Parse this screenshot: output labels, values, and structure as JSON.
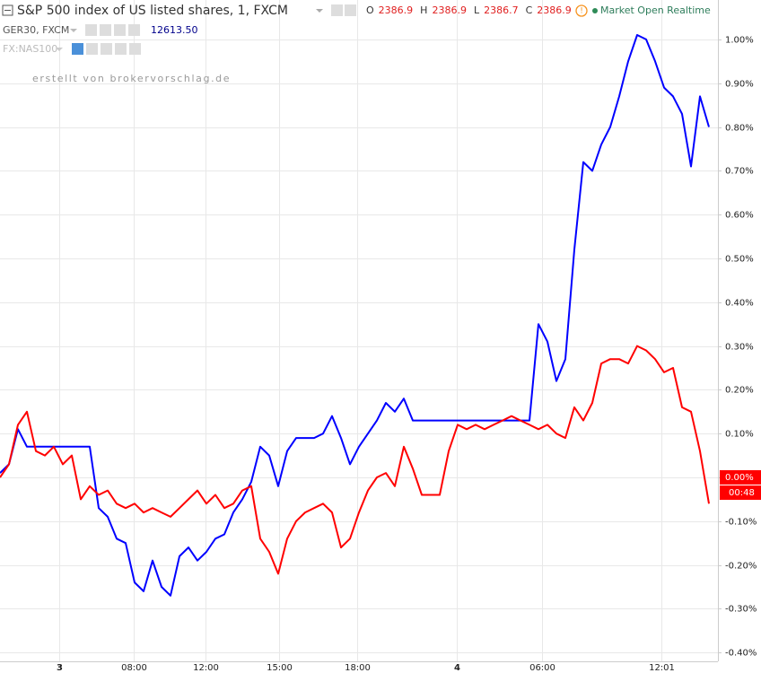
{
  "chart_data": {
    "type": "line",
    "title": "S&P 500 index of US listed shares, 1, FXCM",
    "ohlc": [
      {
        "label": "O",
        "value": 2386.9
      },
      {
        "label": "H",
        "value": 2386.9
      },
      {
        "label": "L",
        "value": 2386.7
      },
      {
        "label": "C",
        "value": 2386.9
      }
    ],
    "status": "Market Open Realtime",
    "hidden_comparison": "FX:NAS100",
    "watermark": "erstellt von brokervorschlag.de",
    "countdown": "00:48",
    "x": [
      0,
      1,
      2,
      3,
      4,
      5,
      6,
      7,
      8,
      9,
      10,
      11,
      12,
      13,
      14,
      15,
      16,
      17,
      18,
      19,
      20,
      21,
      22,
      23,
      24,
      25,
      26,
      27,
      28,
      29,
      30,
      31,
      32,
      33,
      34,
      35,
      36,
      37,
      38,
      39,
      40,
      41,
      42,
      43,
      44,
      45,
      46,
      47,
      48,
      49,
      50,
      51,
      52,
      53,
      54,
      55,
      56,
      57,
      58,
      59,
      60,
      61,
      62,
      63,
      64,
      65,
      66,
      67,
      68,
      69,
      70,
      71,
      72,
      73,
      74,
      75,
      76,
      77,
      78,
      79
    ],
    "series": [
      {
        "name": "GER30, FXCM",
        "legend_value": "12613.50",
        "color": "#0000ff",
        "values": [
          0.01,
          0.03,
          0.11,
          0.07,
          0.07,
          0.07,
          0.07,
          0.07,
          0.07,
          0.07,
          0.07,
          -0.07,
          -0.09,
          -0.14,
          -0.15,
          -0.24,
          -0.26,
          -0.19,
          -0.25,
          -0.27,
          -0.18,
          -0.16,
          -0.19,
          -0.17,
          -0.14,
          -0.13,
          -0.08,
          -0.05,
          -0.01,
          0.07,
          0.05,
          -0.02,
          0.06,
          0.09,
          0.09,
          0.09,
          0.1,
          0.14,
          0.09,
          0.03,
          0.07,
          0.1,
          0.13,
          0.17,
          0.15,
          0.18,
          0.13,
          0.13,
          0.13,
          0.13,
          0.13,
          0.13,
          0.13,
          0.13,
          0.13,
          0.13,
          0.13,
          0.13,
          0.13,
          0.13,
          0.35,
          0.31,
          0.22,
          0.27,
          0.52,
          0.72,
          0.7,
          0.76,
          0.8,
          0.87,
          0.95,
          1.01,
          1.0,
          0.95,
          0.89,
          0.87,
          0.83,
          0.71,
          0.87,
          0.8
        ]
      },
      {
        "color": "#ff0000",
        "values": [
          0.0,
          0.03,
          0.12,
          0.15,
          0.06,
          0.05,
          0.07,
          0.03,
          0.05,
          -0.05,
          -0.02,
          -0.04,
          -0.03,
          -0.06,
          -0.07,
          -0.06,
          -0.08,
          -0.07,
          -0.08,
          -0.09,
          -0.07,
          -0.05,
          -0.03,
          -0.06,
          -0.04,
          -0.07,
          -0.06,
          -0.03,
          -0.02,
          -0.14,
          -0.17,
          -0.22,
          -0.14,
          -0.1,
          -0.08,
          -0.07,
          -0.06,
          -0.08,
          -0.16,
          -0.14,
          -0.08,
          -0.03,
          0.0,
          0.01,
          -0.02,
          0.07,
          0.02,
          -0.04,
          -0.04,
          -0.04,
          0.06,
          0.12,
          0.11,
          0.12,
          0.11,
          0.12,
          0.13,
          0.14,
          0.13,
          0.12,
          0.11,
          0.12,
          0.1,
          0.09,
          0.16,
          0.13,
          0.17,
          0.26,
          0.27,
          0.27,
          0.26,
          0.3,
          0.29,
          0.27,
          0.24,
          0.25,
          0.16,
          0.15,
          0.06,
          -0.06
        ]
      }
    ],
    "xlim": [
      0,
      80
    ],
    "xticks": [
      {
        "value": 6.6,
        "label": "3"
      },
      {
        "value": 14.9,
        "label": "08:00"
      },
      {
        "value": 22.9,
        "label": "12:00"
      },
      {
        "value": 31.1,
        "label": "15:00"
      },
      {
        "value": 39.8,
        "label": "18:00"
      },
      {
        "value": 50.9,
        "label": "4"
      },
      {
        "value": 60.4,
        "label": "06:00"
      },
      {
        "value": 73.7,
        "label": "12:01"
      }
    ],
    "ylim": [
      -0.42,
      1.09
    ],
    "yticks": [
      {
        "value": 1.0,
        "label": "1.00%"
      },
      {
        "value": 0.9,
        "label": "0.90%"
      },
      {
        "value": 0.8,
        "label": "0.80%"
      },
      {
        "value": 0.7,
        "label": "0.70%"
      },
      {
        "value": 0.6,
        "label": "0.60%"
      },
      {
        "value": 0.5,
        "label": "0.50%"
      },
      {
        "value": 0.4,
        "label": "0.40%"
      },
      {
        "value": 0.3,
        "label": "0.30%"
      },
      {
        "value": 0.2,
        "label": "0.20%"
      },
      {
        "value": 0.1,
        "label": "0.10%"
      },
      {
        "value": 0,
        "label": "0.00%"
      },
      {
        "value": -0.1,
        "label": "-0.10%"
      },
      {
        "value": -0.2,
        "label": "-0.20%"
      },
      {
        "value": -0.3,
        "label": "-0.30%"
      },
      {
        "value": -0.4,
        "label": "-0.40%"
      }
    ],
    "grid": true
  }
}
